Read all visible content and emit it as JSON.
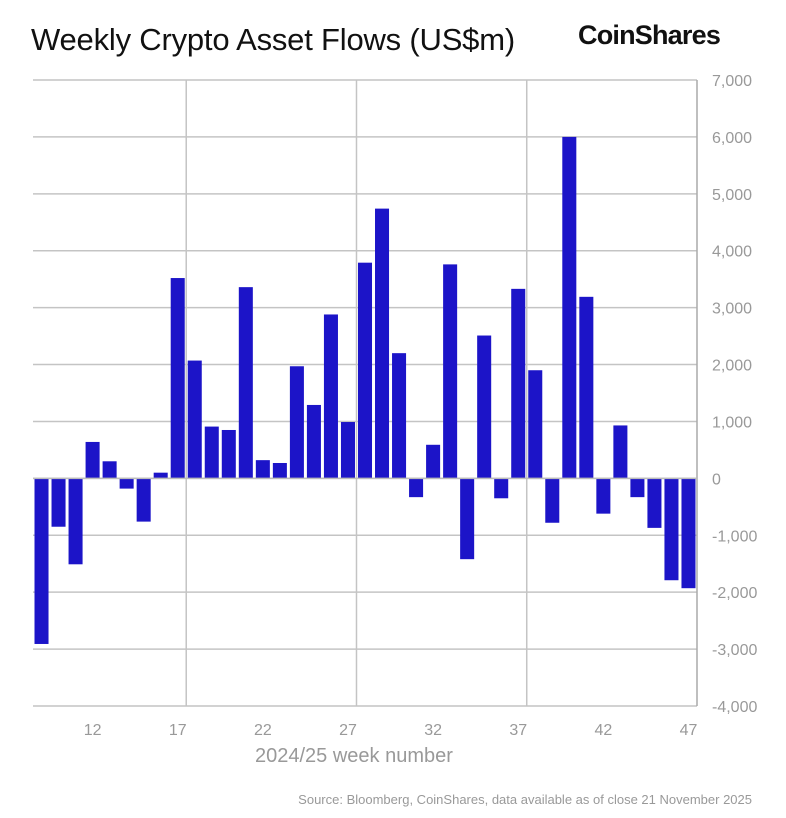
{
  "chart_data": {
    "type": "bar",
    "title": "Weekly Crypto Asset Flows (US$m)",
    "xlabel": "2024/25 week number",
    "ylabel": "",
    "source": "Source: Bloomberg, CoinShares, data available as of close 21 November 2025",
    "brand": "CoinShares",
    "ylim": [
      -4000,
      7000
    ],
    "yticks": [
      7000,
      6000,
      5000,
      4000,
      3000,
      2000,
      1000,
      0,
      -1000,
      -2000,
      -3000,
      -4000
    ],
    "ytick_labels": [
      "7,000",
      "6,000",
      "5,000",
      "4,000",
      "3,000",
      "2,000",
      "1,000",
      "0",
      "-1,000",
      "-2,000",
      "-3,000",
      "-4,000"
    ],
    "xtick_labels": [
      "12",
      "17",
      "22",
      "27",
      "32",
      "37",
      "42",
      "47"
    ],
    "grid": true,
    "bar_color": "#1c14c8",
    "categories": [
      9,
      10,
      11,
      12,
      13,
      14,
      15,
      16,
      17,
      18,
      19,
      20,
      21,
      22,
      23,
      24,
      25,
      26,
      27,
      28,
      29,
      30,
      31,
      32,
      33,
      34,
      35,
      36,
      37,
      38,
      39,
      40,
      41,
      42,
      43,
      44,
      45,
      46,
      47
    ],
    "values": [
      -2910,
      -850,
      -1510,
      640,
      300,
      -180,
      -760,
      100,
      3520,
      2070,
      910,
      850,
      3360,
      320,
      270,
      1970,
      1290,
      2880,
      990,
      3790,
      4740,
      2200,
      -330,
      590,
      3760,
      -1420,
      2510,
      -350,
      3330,
      1900,
      -780,
      6000,
      3190,
      -620,
      930,
      -330,
      -870,
      -1790,
      -1930
    ]
  }
}
